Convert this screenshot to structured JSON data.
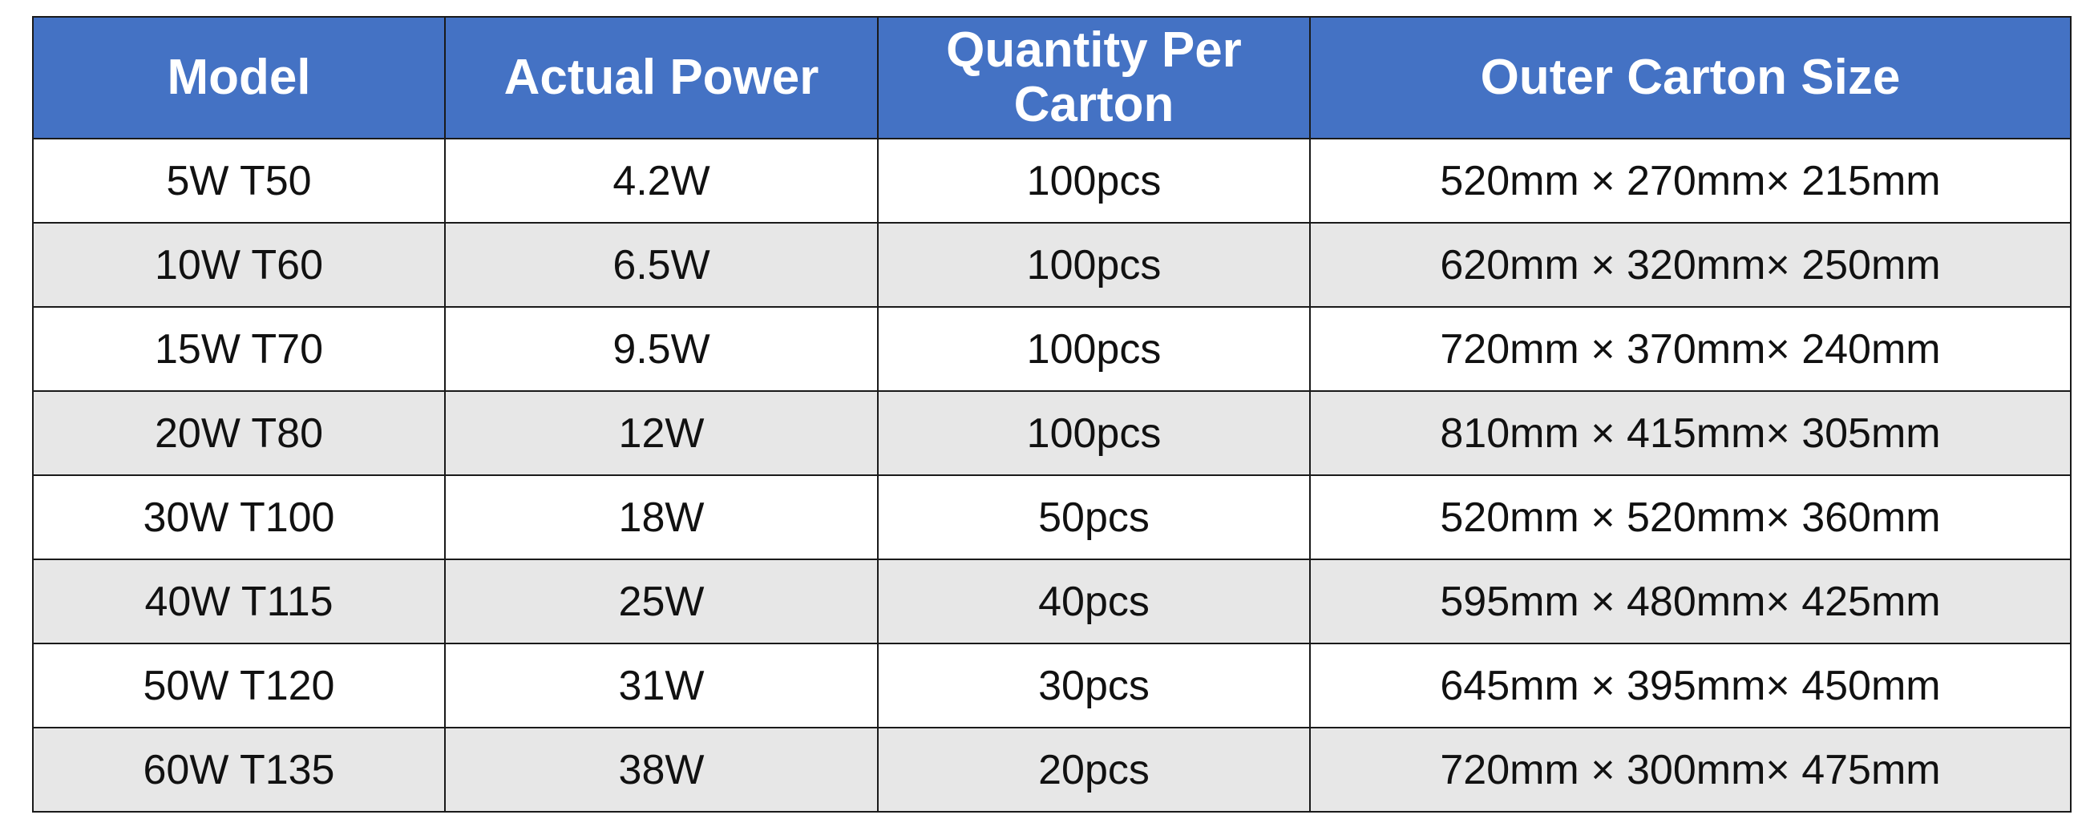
{
  "table": {
    "header": [
      "Model",
      "Actual Power",
      "Quantity Per Carton",
      "Outer Carton Size"
    ],
    "rows": [
      [
        "5W T50",
        "4.2W",
        "100pcs",
        "520mm × 270mm× 215mm"
      ],
      [
        "10W T60",
        "6.5W",
        "100pcs",
        "620mm × 320mm× 250mm"
      ],
      [
        "15W T70",
        "9.5W",
        "100pcs",
        "720mm × 370mm× 240mm"
      ],
      [
        "20W T80",
        "12W",
        "100pcs",
        "810mm × 415mm× 305mm"
      ],
      [
        "30W T100",
        "18W",
        "50pcs",
        "520mm × 520mm× 360mm"
      ],
      [
        "40W T115",
        "25W",
        "40pcs",
        "595mm × 480mm× 425mm"
      ],
      [
        "50W T120",
        "31W",
        "30pcs",
        "645mm × 395mm× 450mm"
      ],
      [
        "60W T135",
        "38W",
        "20pcs",
        "720mm × 300mm× 475mm"
      ]
    ]
  }
}
